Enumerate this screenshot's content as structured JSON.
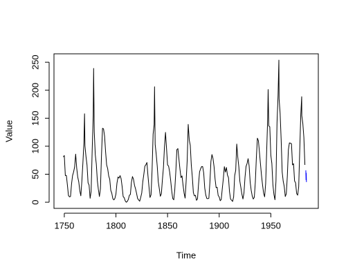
{
  "chart_data": {
    "type": "line",
    "xlabel": "Time",
    "ylabel": "Value",
    "xlim": [
      1740,
      1996
    ],
    "ylim": [
      -11,
      265
    ],
    "xticks": [
      1750,
      1800,
      1850,
      1900,
      1950
    ],
    "yticks": [
      0,
      50,
      100,
      150,
      200,
      250
    ],
    "series": [
      {
        "color": "#000000",
        "x": [
          1749,
          1750,
          1751,
          1752,
          1753,
          1754,
          1755,
          1756,
          1757,
          1758,
          1759,
          1760,
          1761,
          1762,
          1763,
          1764,
          1765,
          1766,
          1767,
          1768,
          1769,
          1769.6,
          1770,
          1771,
          1772,
          1773,
          1774,
          1775,
          1776,
          1777,
          1778,
          1778.4,
          1779,
          1780,
          1781,
          1782,
          1783,
          1784,
          1785,
          1786,
          1787,
          1788,
          1789,
          1790,
          1791,
          1792,
          1793,
          1794,
          1795,
          1796,
          1797,
          1798,
          1799,
          1800,
          1801,
          1802,
          1803,
          1804,
          1805,
          1806,
          1807,
          1808,
          1809,
          1810,
          1811,
          1812,
          1813,
          1814,
          1815,
          1816,
          1817,
          1818,
          1819,
          1820,
          1821,
          1822,
          1823,
          1824,
          1825,
          1826,
          1827,
          1828,
          1829,
          1830,
          1831,
          1832,
          1833,
          1834,
          1835,
          1836,
          1837,
          1837.4,
          1838,
          1839,
          1840,
          1841,
          1842,
          1843,
          1844,
          1845,
          1846,
          1847,
          1848,
          1849,
          1850,
          1851,
          1852,
          1853,
          1854,
          1855,
          1856,
          1857,
          1858,
          1859,
          1860,
          1861,
          1862,
          1863,
          1864,
          1865,
          1866,
          1867,
          1868,
          1869,
          1870,
          1871,
          1872,
          1873,
          1874,
          1875,
          1876,
          1877,
          1878,
          1879,
          1880,
          1881,
          1882,
          1883,
          1884,
          1885,
          1886,
          1887,
          1888,
          1889,
          1890,
          1891,
          1892,
          1893,
          1894,
          1895,
          1896,
          1897,
          1898,
          1899,
          1900,
          1901,
          1902,
          1903,
          1904,
          1905,
          1906,
          1907,
          1908,
          1909,
          1910,
          1911,
          1912,
          1913,
          1914,
          1915,
          1916,
          1917,
          1918,
          1919,
          1920,
          1921,
          1922,
          1923,
          1924,
          1925,
          1926,
          1927,
          1928,
          1929,
          1930,
          1931,
          1932,
          1933,
          1934,
          1935,
          1936,
          1937,
          1938,
          1939,
          1940,
          1941,
          1942,
          1943,
          1944,
          1945,
          1946,
          1947,
          1947.4,
          1948,
          1949,
          1950,
          1951,
          1952,
          1953,
          1954,
          1955,
          1956,
          1957,
          1957.8,
          1958,
          1959,
          1960,
          1961,
          1962,
          1963,
          1964,
          1965,
          1966,
          1967,
          1968,
          1969,
          1970,
          1971,
          1972,
          1973,
          1974,
          1975,
          1976,
          1977,
          1978,
          1979,
          1979.9,
          1980,
          1981,
          1982,
          1983
        ],
        "values": [
          80.9,
          83.4,
          47.7,
          47.8,
          30.7,
          12.2,
          9.6,
          10.2,
          32.4,
          47.6,
          54.0,
          62.9,
          85.9,
          61.2,
          45.1,
          36.4,
          20.9,
          11.4,
          37.8,
          69.8,
          106.1,
          158,
          100.8,
          81.6,
          66.5,
          34.8,
          30.6,
          7.0,
          19.8,
          92.5,
          154.4,
          238.9,
          125.9,
          84.8,
          68.1,
          38.5,
          22.8,
          10.2,
          24.1,
          82.9,
          132.0,
          130.9,
          118.1,
          89.9,
          66.6,
          60.0,
          46.9,
          41.0,
          21.3,
          16.0,
          6.4,
          4.1,
          6.8,
          14.5,
          34.0,
          45.0,
          43.1,
          47.5,
          42.2,
          28.1,
          10.1,
          8.1,
          2.5,
          0.0,
          1.4,
          5.0,
          12.2,
          13.9,
          35.4,
          45.8,
          41.1,
          30.1,
          23.9,
          15.6,
          6.6,
          4.0,
          1.8,
          8.5,
          16.6,
          36.3,
          49.6,
          64.2,
          67.0,
          70.9,
          47.8,
          27.5,
          8.5,
          13.2,
          56.9,
          121.5,
          138.3,
          206.2,
          103.2,
          85.7,
          64.6,
          36.7,
          24.2,
          10.7,
          15.0,
          40.1,
          61.5,
          98.5,
          124.7,
          96.3,
          66.6,
          64.5,
          54.1,
          39.0,
          20.6,
          6.7,
          4.3,
          22.7,
          54.8,
          93.8,
          95.8,
          77.2,
          59.1,
          44.0,
          47.0,
          30.5,
          16.3,
          7.3,
          37.6,
          74.0,
          139.0,
          111.2,
          101.6,
          66.2,
          44.7,
          17.0,
          11.3,
          12.4,
          3.4,
          6.0,
          32.3,
          54.3,
          59.7,
          63.7,
          63.5,
          52.2,
          25.4,
          13.1,
          6.8,
          6.3,
          7.1,
          35.6,
          73.0,
          85.1,
          78.0,
          64.0,
          41.8,
          26.2,
          26.7,
          12.1,
          9.5,
          2.7,
          5.0,
          24.4,
          42.0,
          63.5,
          53.8,
          62.0,
          48.5,
          43.9,
          18.6,
          5.7,
          3.6,
          1.4,
          9.6,
          47.4,
          57.1,
          103.9,
          80.6,
          63.6,
          37.6,
          26.1,
          14.2,
          5.8,
          16.7,
          44.3,
          63.9,
          69.0,
          77.8,
          64.9,
          35.7,
          21.2,
          11.1,
          5.7,
          8.7,
          36.1,
          79.7,
          114.4,
          109.6,
          88.8,
          67.8,
          47.5,
          30.6,
          16.3,
          9.6,
          33.2,
          92.6,
          151.6,
          201.3,
          136.3,
          134.7,
          83.9,
          69.4,
          31.5,
          13.9,
          4.4,
          38.0,
          141.7,
          190.2,
          253.8,
          184.8,
          159.0,
          112.3,
          53.9,
          37.5,
          27.9,
          10.2,
          15.1,
          47.0,
          93.8,
          105.9,
          105.5,
          104.5,
          66.6,
          68.9,
          38.0,
          34.5,
          15.5,
          12.6,
          27.5,
          92.5,
          155.4,
          188.4,
          154.6,
          140.4,
          115.9,
          66.6
        ]
      },
      {
        "color": "#0000ff",
        "x": [
          1983.9,
          1984.1,
          1984.3,
          1984.5
        ],
        "values": [
          57,
          40,
          52,
          36
        ]
      }
    ]
  }
}
